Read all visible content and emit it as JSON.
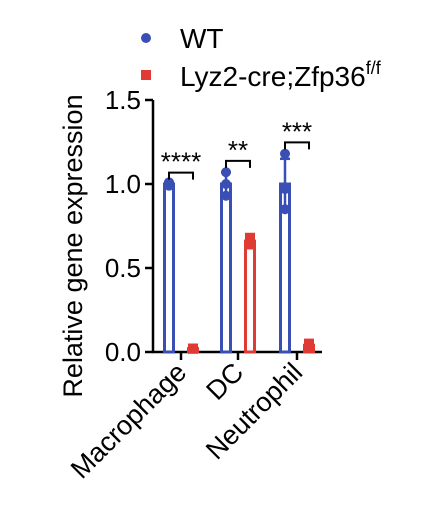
{
  "chart_data": {
    "type": "bar",
    "title": "",
    "xlabel": "",
    "ylabel": "Relative gene expression",
    "ylim": [
      0,
      1.5
    ],
    "yticks": [
      "0.0",
      "0.5",
      "1.0",
      "1.5"
    ],
    "ytick_values": [
      0,
      0.5,
      1.0,
      1.5
    ],
    "categories": [
      "Macrophage",
      "DC",
      "Neutrophil"
    ],
    "grid": false,
    "legend_position": "top",
    "series": [
      {
        "name": "WT",
        "color": "#3a4fb5",
        "marker": "circle",
        "style": "hollow-bar",
        "values": [
          1.0,
          1.0,
          1.0
        ],
        "errors": [
          0.01,
          0.07,
          0.15
        ],
        "points": [
          [
            0.99,
            1.01,
            1.0
          ],
          [
            0.93,
            1.07,
            1.0
          ],
          [
            0.85,
            1.18,
            0.97
          ]
        ]
      },
      {
        "name_main": "Lyz2-cre;Zfp36",
        "name_sup": "f/f",
        "color": "#e03a35",
        "marker": "square",
        "style": "hollow-bar",
        "values": [
          0.02,
          0.66,
          0.04
        ],
        "errors": [
          0.0,
          0.02,
          0.01
        ],
        "points": [
          [
            0.02,
            0.02,
            0.02
          ],
          [
            0.64,
            0.68,
            0.66
          ],
          [
            0.03,
            0.05,
            0.04
          ]
        ]
      }
    ],
    "significance": [
      "****",
      "**",
      "***"
    ]
  }
}
